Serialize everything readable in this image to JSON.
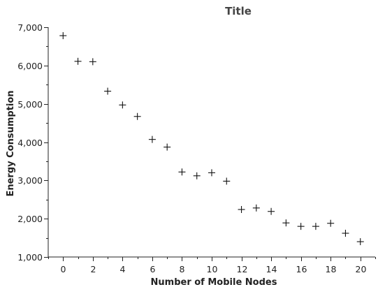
{
  "chart_data": {
    "type": "scatter",
    "title": "Title",
    "xlabel": "Number of Mobile Nodes",
    "ylabel": "Energy Consumption",
    "marker": "plus",
    "marker_color": "#111111",
    "xlim": [
      -1,
      21
    ],
    "ylim": [
      1000,
      7000
    ],
    "x_ticks": [
      0,
      2,
      4,
      6,
      8,
      10,
      12,
      14,
      16,
      18,
      20
    ],
    "y_ticks": [
      1000,
      2000,
      3000,
      4000,
      5000,
      6000,
      7000
    ],
    "x_tick_labels": [
      "0",
      "2",
      "4",
      "6",
      "8",
      "10",
      "12",
      "14",
      "16",
      "18",
      "20"
    ],
    "y_tick_labels": [
      "1,000",
      "2,000",
      "3,000",
      "4,000",
      "5,000",
      "6,000",
      "7,000"
    ],
    "grid": false,
    "points": [
      {
        "x": 0,
        "y": 6780
      },
      {
        "x": 1,
        "y": 6110
      },
      {
        "x": 2,
        "y": 6100
      },
      {
        "x": 3,
        "y": 5330
      },
      {
        "x": 4,
        "y": 4970
      },
      {
        "x": 5,
        "y": 4670
      },
      {
        "x": 6,
        "y": 4070
      },
      {
        "x": 7,
        "y": 3870
      },
      {
        "x": 8,
        "y": 3220
      },
      {
        "x": 9,
        "y": 3120
      },
      {
        "x": 10,
        "y": 3200
      },
      {
        "x": 11,
        "y": 2980
      },
      {
        "x": 12,
        "y": 2240
      },
      {
        "x": 13,
        "y": 2280
      },
      {
        "x": 14,
        "y": 2190
      },
      {
        "x": 15,
        "y": 1890
      },
      {
        "x": 16,
        "y": 1800
      },
      {
        "x": 17,
        "y": 1800
      },
      {
        "x": 18,
        "y": 1880
      },
      {
        "x": 19,
        "y": 1620
      },
      {
        "x": 20,
        "y": 1400
      }
    ]
  }
}
